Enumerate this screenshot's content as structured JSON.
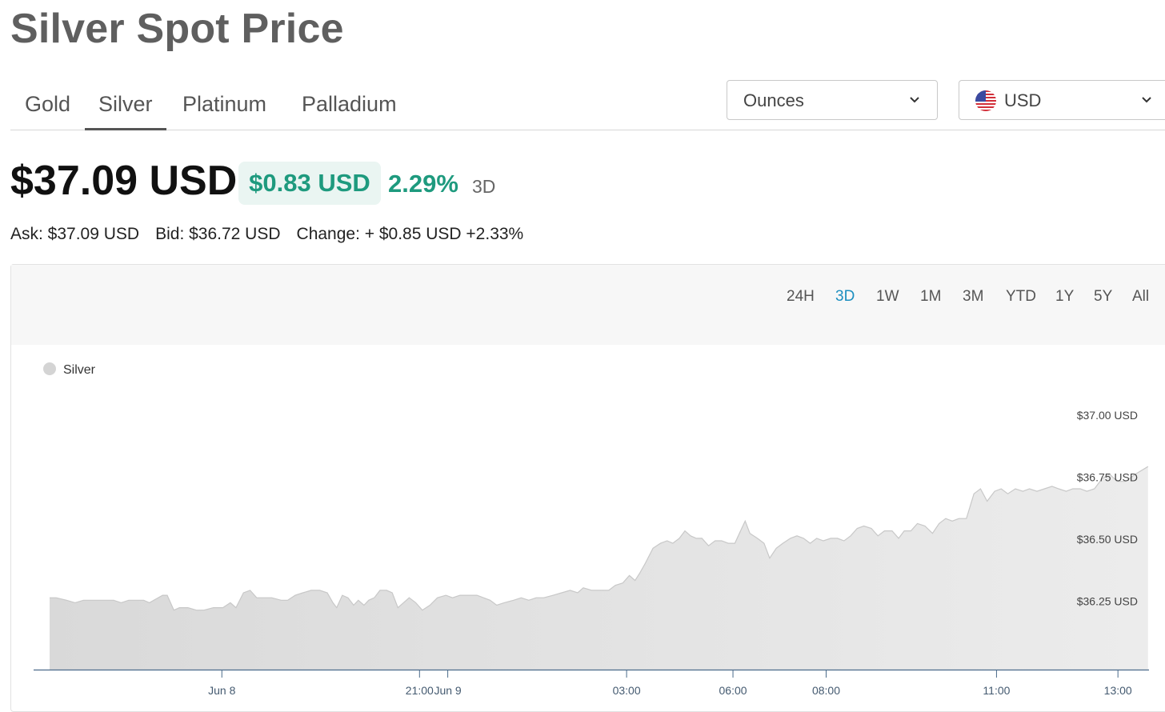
{
  "page": {
    "title": "Silver Spot Price"
  },
  "metal_tabs": [
    {
      "label": "Gold",
      "active": false
    },
    {
      "label": "Silver",
      "active": true
    },
    {
      "label": "Platinum",
      "active": false
    },
    {
      "label": "Palladium",
      "active": false
    }
  ],
  "unit_select": {
    "value": "Ounces",
    "icon": "chevron-down-icon"
  },
  "currency_select": {
    "value": "USD",
    "icon": "us-flag-icon"
  },
  "price": {
    "current": "$37.09 USD",
    "change": "$0.83 USD",
    "change_pct": "2.29%",
    "period": "3D"
  },
  "quote": {
    "ask": "Ask: $37.09 USD",
    "bid": "Bid: $36.72 USD",
    "change": "Change: + $0.85 USD +2.33%"
  },
  "ranges": [
    "24H",
    "3D",
    "1W",
    "1M",
    "3M",
    "YTD",
    "1Y",
    "5Y",
    "All"
  ],
  "active_range": "3D",
  "colors": {
    "accent_green": "#1e9a7e",
    "accent_blue": "#1d8fc0",
    "area_fill": "#e3e3e3",
    "axis": "#4a6a8a"
  },
  "chart_data": {
    "type": "area",
    "legend": {
      "label": "Silver",
      "placement": "top-left"
    },
    "y_ticks": [
      "$36.25 USD",
      "$36.50 USD",
      "$36.75 USD",
      "$37.00 USD"
    ],
    "y_tick_values": [
      36.25,
      36.5,
      36.75,
      37.0
    ],
    "x_ticks": [
      {
        "label": "Jun 8",
        "t": 20
      },
      {
        "label": "21:00",
        "t": 41
      },
      {
        "label": "Jun 9",
        "t": 44
      },
      {
        "label": "03:00",
        "t": 63
      },
      {
        "label": "06:00",
        "t": 74.3
      },
      {
        "label": "08:00",
        "t": 84.2
      },
      {
        "label": "11:00",
        "t": 102.3
      },
      {
        "label": "13:00",
        "t": 115.2
      }
    ],
    "x_unit": "hours since first point",
    "ylim": [
      35.97,
      37.12
    ],
    "grid": false,
    "points": [
      [
        1.7,
        36.26
      ],
      [
        2.4,
        36.26
      ],
      [
        3.5,
        36.25
      ],
      [
        4.4,
        36.24
      ],
      [
        5.3,
        36.25
      ],
      [
        6.7,
        36.25
      ],
      [
        8.5,
        36.25
      ],
      [
        9.3,
        36.24
      ],
      [
        10.1,
        36.25
      ],
      [
        11.7,
        36.25
      ],
      [
        12.3,
        36.24
      ],
      [
        13.7,
        36.27
      ],
      [
        14.2,
        36.27
      ],
      [
        14.9,
        36.21
      ],
      [
        15.5,
        36.22
      ],
      [
        16.4,
        36.22
      ],
      [
        17.3,
        36.21
      ],
      [
        18.1,
        36.21
      ],
      [
        19.1,
        36.22
      ],
      [
        20.1,
        36.22
      ],
      [
        20.9,
        36.24
      ],
      [
        21.5,
        36.22
      ],
      [
        22.3,
        36.28
      ],
      [
        23.0,
        36.29
      ],
      [
        23.7,
        36.26
      ],
      [
        24.5,
        36.26
      ],
      [
        25.3,
        36.26
      ],
      [
        26.3,
        36.25
      ],
      [
        27.0,
        36.25
      ],
      [
        27.8,
        36.27
      ],
      [
        28.6,
        36.28
      ],
      [
        29.5,
        36.29
      ],
      [
        30.4,
        36.29
      ],
      [
        31.2,
        36.28
      ],
      [
        31.8,
        36.24
      ],
      [
        32.2,
        36.22
      ],
      [
        32.8,
        36.27
      ],
      [
        33.4,
        36.26
      ],
      [
        34.0,
        36.23
      ],
      [
        34.5,
        36.25
      ],
      [
        35.1,
        36.23
      ],
      [
        35.6,
        36.25
      ],
      [
        36.2,
        36.26
      ],
      [
        36.8,
        36.29
      ],
      [
        37.5,
        36.29
      ],
      [
        38.1,
        36.28
      ],
      [
        38.7,
        36.22
      ],
      [
        39.3,
        36.24
      ],
      [
        39.9,
        36.26
      ],
      [
        40.6,
        36.24
      ],
      [
        41.3,
        36.21
      ],
      [
        42.1,
        36.23
      ],
      [
        42.9,
        36.26
      ],
      [
        43.8,
        36.27
      ],
      [
        44.5,
        36.26
      ],
      [
        45.3,
        36.27
      ],
      [
        46.1,
        36.27
      ],
      [
        47.1,
        36.27
      ],
      [
        47.8,
        36.26
      ],
      [
        48.5,
        36.25
      ],
      [
        49.2,
        36.23
      ],
      [
        50.0,
        36.24
      ],
      [
        51.0,
        36.25
      ],
      [
        51.8,
        36.26
      ],
      [
        52.6,
        36.25
      ],
      [
        53.4,
        36.26
      ],
      [
        54.2,
        36.26
      ],
      [
        55.2,
        36.27
      ],
      [
        56.1,
        36.28
      ],
      [
        57.0,
        36.29
      ],
      [
        57.8,
        36.28
      ],
      [
        58.4,
        36.3
      ],
      [
        59.3,
        36.29
      ],
      [
        60.3,
        36.29
      ],
      [
        61.1,
        36.29
      ],
      [
        61.8,
        36.31
      ],
      [
        62.6,
        36.32
      ],
      [
        63.3,
        36.35
      ],
      [
        63.9,
        36.33
      ],
      [
        64.4,
        36.36
      ],
      [
        65.0,
        36.4
      ],
      [
        65.8,
        36.46
      ],
      [
        66.6,
        36.48
      ],
      [
        67.3,
        36.49
      ],
      [
        67.9,
        36.48
      ],
      [
        68.6,
        36.5
      ],
      [
        69.2,
        36.53
      ],
      [
        69.8,
        36.51
      ],
      [
        70.4,
        36.5
      ],
      [
        71.0,
        36.5
      ],
      [
        71.7,
        36.47
      ],
      [
        72.4,
        36.49
      ],
      [
        73.1,
        36.49
      ],
      [
        73.8,
        36.48
      ],
      [
        74.5,
        36.48
      ],
      [
        75.1,
        36.53
      ],
      [
        75.6,
        36.57
      ],
      [
        76.1,
        36.52
      ],
      [
        76.9,
        36.5
      ],
      [
        77.6,
        36.48
      ],
      [
        78.2,
        36.42
      ],
      [
        78.9,
        36.46
      ],
      [
        79.6,
        36.48
      ],
      [
        80.4,
        36.5
      ],
      [
        81.1,
        36.51
      ],
      [
        81.8,
        36.5
      ],
      [
        82.5,
        36.48
      ],
      [
        83.2,
        36.5
      ],
      [
        83.9,
        36.49
      ],
      [
        84.7,
        36.5
      ],
      [
        85.4,
        36.5
      ],
      [
        86.1,
        36.49
      ],
      [
        86.8,
        36.51
      ],
      [
        87.5,
        36.54
      ],
      [
        88.2,
        36.55
      ],
      [
        89.0,
        36.54
      ],
      [
        89.7,
        36.51
      ],
      [
        90.4,
        36.53
      ],
      [
        91.2,
        36.53
      ],
      [
        91.9,
        36.5
      ],
      [
        92.5,
        36.53
      ],
      [
        93.2,
        36.53
      ],
      [
        93.9,
        36.56
      ],
      [
        94.7,
        36.55
      ],
      [
        95.5,
        36.52
      ],
      [
        96.2,
        36.56
      ],
      [
        96.9,
        36.58
      ],
      [
        97.6,
        36.57
      ],
      [
        98.3,
        36.58
      ],
      [
        99.1,
        36.58
      ],
      [
        99.9,
        36.68
      ],
      [
        100.6,
        36.7
      ],
      [
        101.3,
        36.65
      ],
      [
        102.1,
        36.69
      ],
      [
        102.8,
        36.7
      ],
      [
        103.5,
        36.68
      ],
      [
        104.3,
        36.7
      ],
      [
        105.1,
        36.69
      ],
      [
        105.8,
        36.7
      ],
      [
        106.6,
        36.69
      ],
      [
        107.4,
        36.7
      ],
      [
        108.2,
        36.71
      ],
      [
        108.9,
        36.7
      ],
      [
        109.7,
        36.69
      ],
      [
        110.4,
        36.7
      ],
      [
        111.2,
        36.7
      ],
      [
        111.9,
        36.69
      ],
      [
        112.7,
        36.7
      ],
      [
        113.5,
        36.74
      ],
      [
        114.3,
        36.76
      ],
      [
        115.1,
        36.73
      ],
      [
        116.0,
        36.73
      ],
      [
        117.1,
        36.76
      ],
      [
        118.4,
        36.79
      ]
    ]
  }
}
